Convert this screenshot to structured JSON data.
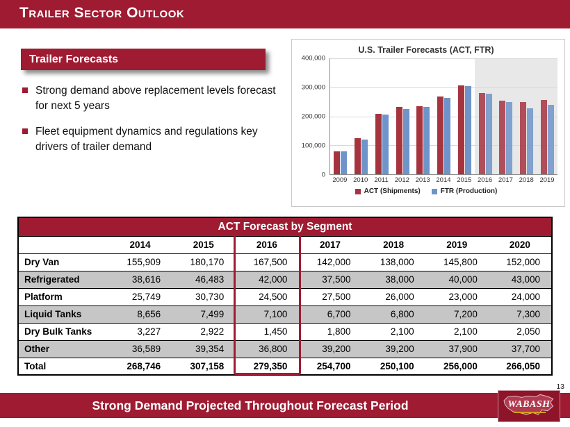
{
  "slide": {
    "title": "Trailer Sector Outlook",
    "page_number": "13"
  },
  "theme": {
    "accent_red": "#9E1B32",
    "bar_act_red": "#A6343F",
    "bar_ftr_blue": "#6E94C9",
    "stripe_gray": "#C6C6C6",
    "forecast_shade_gray": "#E6E6E6"
  },
  "forecast_box": {
    "label": "Trailer Forecasts"
  },
  "bullets": [
    "Strong demand above replacement levels forecast for next 5 years",
    "Fleet equipment dynamics and regulations key drivers of trailer demand"
  ],
  "chart_data": {
    "type": "bar",
    "title": "U.S. Trailer Forecasts (ACT, FTR)",
    "categories": [
      "2009",
      "2010",
      "2011",
      "2012",
      "2013",
      "2014",
      "2015",
      "2016",
      "2017",
      "2018",
      "2019"
    ],
    "series": [
      {
        "name": "ACT (Shipments)",
        "color": "#A6343F",
        "values": [
          79000,
          125000,
          209000,
          232000,
          235000,
          268746,
          307158,
          279350,
          254700,
          250100,
          256000
        ]
      },
      {
        "name": "FTR (Production)",
        "color": "#6E94C9",
        "values": [
          78000,
          119000,
          207000,
          226000,
          232000,
          263000,
          304000,
          277000,
          249000,
          228000,
          239000
        ]
      }
    ],
    "ylim": [
      0,
      400000
    ],
    "yticks": [
      "400,000",
      "300,000",
      "200,000",
      "100,000",
      "0"
    ],
    "forecast_years": [
      "2016",
      "2017",
      "2018",
      "2019"
    ],
    "grid": true,
    "legend_position": "bottom"
  },
  "table": {
    "title": "ACT Forecast by Segment",
    "columns": [
      "",
      "2014",
      "2015",
      "2016",
      "2017",
      "2018",
      "2019",
      "2020"
    ],
    "highlight_column": "2016",
    "rows": [
      {
        "label": "Dry Van",
        "values": [
          "155,909",
          "180,170",
          "167,500",
          "142,000",
          "138,000",
          "145,800",
          "152,000"
        ]
      },
      {
        "label": "Refrigerated",
        "values": [
          "38,616",
          "46,483",
          "42,000",
          "37,500",
          "38,000",
          "40,000",
          "43,000"
        ]
      },
      {
        "label": "Platform",
        "values": [
          "25,749",
          "30,730",
          "24,500",
          "27,500",
          "26,000",
          "23,000",
          "24,000"
        ]
      },
      {
        "label": "Liquid Tanks",
        "values": [
          "8,656",
          "7,499",
          "7,100",
          "6,700",
          "6,800",
          "7,200",
          "7,300"
        ]
      },
      {
        "label": "Dry Bulk Tanks",
        "values": [
          "3,227",
          "2,922",
          "1,450",
          "1,800",
          "2,100",
          "2,100",
          "2,050"
        ]
      },
      {
        "label": "Other",
        "values": [
          "36,589",
          "39,354",
          "36,800",
          "39,200",
          "39,200",
          "37,900",
          "37,700"
        ]
      },
      {
        "label": "Total",
        "values": [
          "268,746",
          "307,158",
          "279,350",
          "254,700",
          "250,100",
          "256,000",
          "266,050"
        ],
        "bold": true
      }
    ]
  },
  "footer": {
    "message": "Strong Demand Projected Throughout Forecast Period",
    "logo_text": "WABASH"
  }
}
